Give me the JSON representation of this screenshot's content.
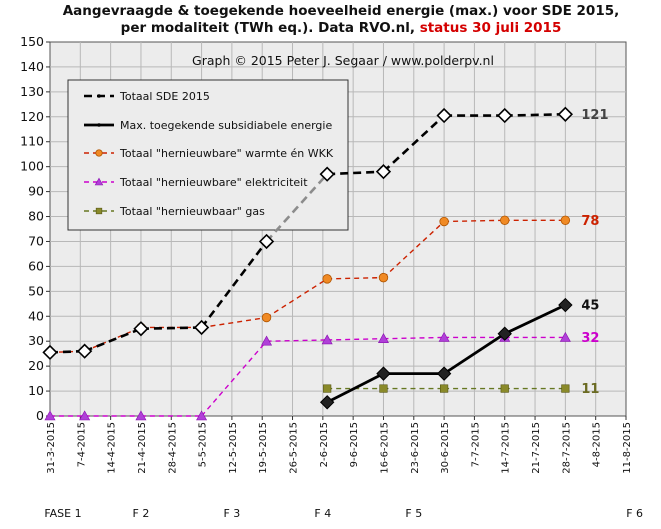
{
  "chart_data": {
    "type": "line",
    "title_line1": "Aangevraagde & toegekende hoeveelheid energie (max.) voor SDE 2015,",
    "title_line2_black": "per modaliteit (TWh eq.). Data RVO.nl, ",
    "title_line2_red": "status 30 juli 2015",
    "credit": "Graph © 2015 Peter J. Segaar / www.polderpv.nl",
    "ylim": [
      0,
      150
    ],
    "yticks": [
      0,
      10,
      20,
      30,
      40,
      50,
      60,
      70,
      80,
      90,
      100,
      110,
      120,
      130,
      140,
      150
    ],
    "xlim": [
      "2015-03-31",
      "2015-08-11"
    ],
    "xtick_labels": [
      "31-3-2015",
      "7-4-2015",
      "14-4-2015",
      "21-4-2015",
      "28-4-2015",
      "5-5-2015",
      "12-5-2015",
      "19-5-2015",
      "26-5-2015",
      "2-6-2015",
      "9-6-2015",
      "16-6-2015",
      "23-6-2015",
      "30-6-2015",
      "7-7-2015",
      "14-7-2015",
      "21-7-2015",
      "28-7-2015",
      "4-8-2015",
      "11-8-2015"
    ],
    "grid": true,
    "legend_position": "top-left",
    "phases": [
      {
        "label": "FASE 1",
        "date": "2015-04-03"
      },
      {
        "label": "F 2",
        "date": "2015-04-21"
      },
      {
        "label": "F 3",
        "date": "2015-05-12"
      },
      {
        "label": "F 4",
        "date": "2015-06-02"
      },
      {
        "label": "F 5",
        "date": "2015-06-23"
      },
      {
        "label": "F 6",
        "date": "2015-08-13"
      }
    ],
    "series": [
      {
        "name": "Totaal SDE 2015",
        "color": "#000000",
        "style": "dashed-thick",
        "marker": "diamond-open",
        "end_label": "121",
        "end_label_color": "#444444",
        "x": [
          "2015-03-31",
          "2015-04-08",
          "2015-04-21",
          "2015-05-05",
          "2015-05-20",
          "2015-06-03",
          "2015-06-16",
          "2015-06-30",
          "2015-07-14",
          "2015-07-28"
        ],
        "y": [
          25.5,
          26,
          35,
          35.5,
          70,
          97,
          98,
          120.5,
          120.5,
          121
        ]
      },
      {
        "name": "Max. toegekende subsidiabele energie",
        "color": "#000000",
        "style": "solid-thick",
        "marker": "diamond-filled",
        "end_label": "45",
        "end_label_color": "#111111",
        "x": [
          "2015-06-03",
          "2015-06-16",
          "2015-06-30",
          "2015-07-14",
          "2015-07-28"
        ],
        "y": [
          5.5,
          17,
          17,
          33,
          44.5
        ]
      },
      {
        "name": "Totaal \"hernieuwbare\" warmte én WKK",
        "color": "#cc2200",
        "style": "dashed",
        "marker": "circle-orange",
        "end_label": "78",
        "end_label_color": "#cc2200",
        "x": [
          "2015-03-31",
          "2015-04-08",
          "2015-04-21",
          "2015-05-05",
          "2015-05-20",
          "2015-06-03",
          "2015-06-16",
          "2015-06-30",
          "2015-07-14",
          "2015-07-28"
        ],
        "y": [
          25.5,
          26,
          35.5,
          35.5,
          39.5,
          55,
          55.5,
          78,
          78.5,
          78.5
        ]
      },
      {
        "name": "Totaal \"hernieuwbare\" elektriciteit",
        "color": "#cc00cc",
        "style": "dashed",
        "marker": "triangle-purple",
        "end_label": "32",
        "end_label_color": "#cc00cc",
        "x": [
          "2015-03-31",
          "2015-04-08",
          "2015-04-21",
          "2015-05-05",
          "2015-05-20",
          "2015-06-03",
          "2015-06-16",
          "2015-06-30",
          "2015-07-14",
          "2015-07-28"
        ],
        "y": [
          0,
          0,
          0,
          0,
          30,
          30.5,
          31,
          31.5,
          31.5,
          31.5
        ]
      },
      {
        "name": "Totaal \"hernieuwbaar\" gas",
        "color": "#667722",
        "style": "dashed",
        "marker": "square-olive",
        "end_label": "11",
        "end_label_color": "#6b6b22",
        "x": [
          "2015-06-03",
          "2015-06-16",
          "2015-06-30",
          "2015-07-14",
          "2015-07-28"
        ],
        "y": [
          11,
          11,
          11,
          11,
          11
        ]
      }
    ],
    "colors": {
      "plot_background": "#ececec",
      "grid": "#b8b8b8",
      "bridge_segment": "#8c8c8c",
      "marker_orange_fill": "#f08a24",
      "marker_purple_fill": "#b040d8",
      "marker_olive_fill": "#8a8a2a",
      "diamond_filled": "#222222"
    }
  }
}
